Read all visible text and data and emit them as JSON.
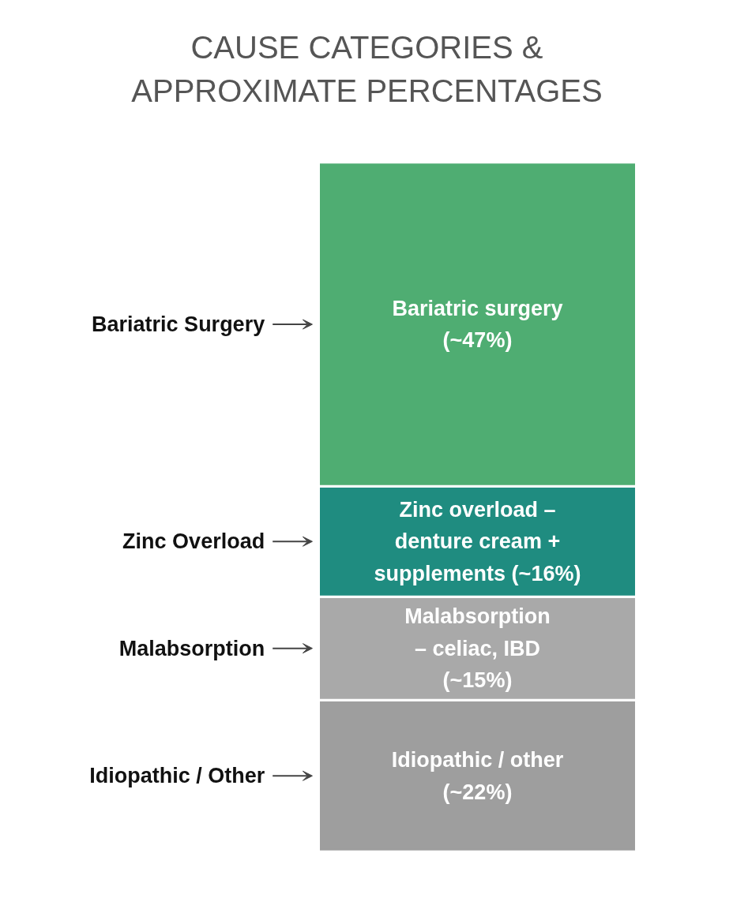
{
  "chart_data": {
    "type": "bar",
    "title": "CAUSE CATEGORIES &\nAPPROXIMATE PERCENTAGES",
    "stacked": true,
    "categories": [
      null
    ],
    "series": [
      {
        "name": "Idiopathic / Other",
        "color": "#9e9e9e",
        "values": [
          22
        ],
        "value_labels": [
          "Idiopathic / other\n(~22%)"
        ]
      },
      {
        "name": "Malabsorption",
        "color": "#a9a9a9",
        "values": [
          15
        ],
        "value_labels": [
          "Malabsorption\n– celiac, IBD\n(~15%)"
        ]
      },
      {
        "name": "Zinc Overload",
        "color": "#1f8c80",
        "values": [
          16
        ],
        "value_labels": [
          "Zinc overload –\ndenture cream +\nsupplements (~16%)"
        ]
      },
      {
        "name": "Bariatric Surgery",
        "color": "#4fad72",
        "values": [
          47
        ],
        "value_labels": [
          "Bariatric surgery\n(~47%)"
        ]
      }
    ],
    "grid": false
  }
}
